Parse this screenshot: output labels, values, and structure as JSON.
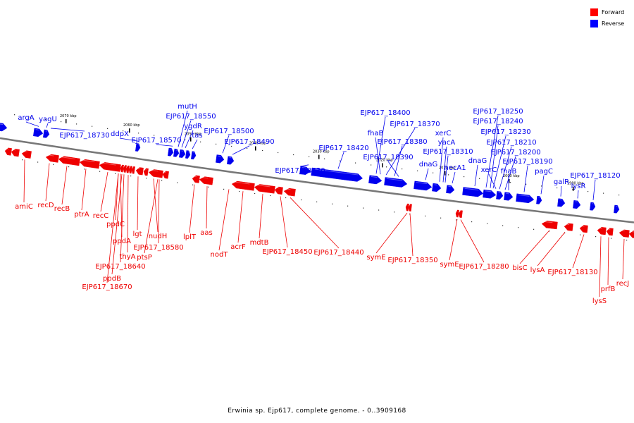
{
  "legend": {
    "forward": {
      "label": "Forward",
      "color": "#ff0000"
    },
    "reverse": {
      "label": "Reverse",
      "color": "#0000ff"
    }
  },
  "caption": "Erwinia sp. Ejp617, complete genome. - 0..3909168",
  "colors": {
    "forward": "#ee0000",
    "reverse": "#0000ee",
    "backbone": "#777777"
  },
  "ticks": [
    "2070 kbp",
    "2060 kbp",
    "2050 kbp",
    "2040 kbp",
    "2030 kbp",
    "2020 kbp",
    "2010 kbp",
    "2000 kbp",
    "1990 kbp"
  ],
  "reverse_labels": [
    "argA",
    "yagU",
    "EJP617_18730",
    "ddpX",
    "EJP617_18570",
    "mutH",
    "EJP617_18550",
    "ygdR",
    "tas",
    "EJP617_18500",
    "EJP617_18490",
    "EJP617_18430",
    "EJP617_18420",
    "EJP617_18400",
    "fhaB",
    "EJP617_18370",
    "EJP617_18380",
    "EJP617_18390",
    "xerC",
    "yacA",
    "EJP617_18310",
    "dnaG",
    "hecA1",
    "dnaG",
    "EJP617_18250",
    "EJP617_18240",
    "EJP617_18230",
    "EJP617_18210",
    "EJP617_18200",
    "xerC",
    "fhaB",
    "EJP617_18190",
    "pagC",
    "galR",
    "lysR",
    "EJP617_18120"
  ],
  "forward_labels": [
    "amiC",
    "recD",
    "recB",
    "ptrA",
    "recC",
    "ppdC",
    "ppdA",
    "thyA",
    "EJP617_18640",
    "ppdB",
    "EJP617_18670",
    "lgt",
    "nudH",
    "EJP617_18580",
    "ptsP",
    "lplT",
    "aas",
    "nodT",
    "acrF",
    "mdtB",
    "EJP617_18450",
    "EJP617_18440",
    "symE",
    "EJP617_18350",
    "symE",
    "EJP617_18280",
    "bisC",
    "lysA",
    "EJP617_18130",
    "lysS",
    "prfB",
    "recJ"
  ]
}
